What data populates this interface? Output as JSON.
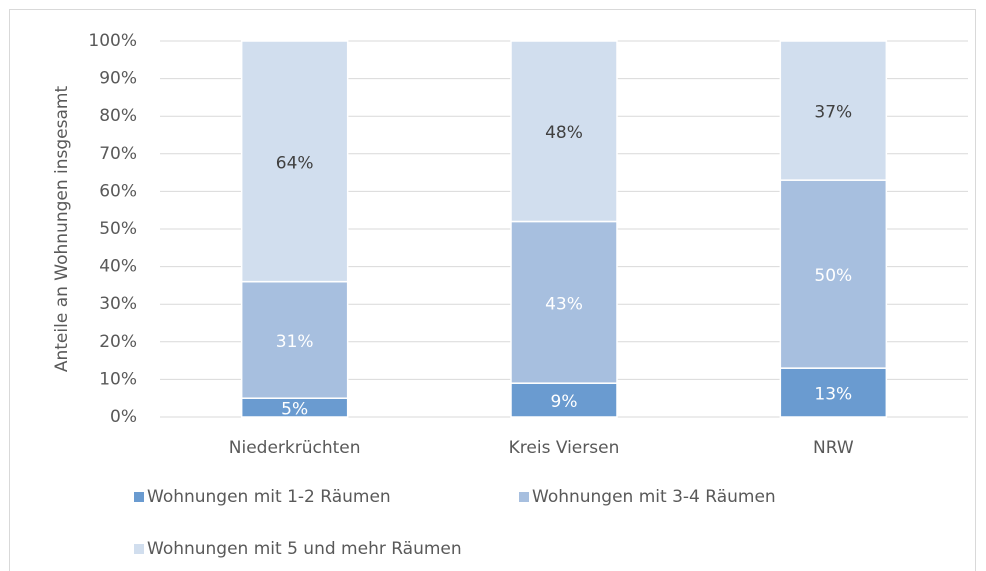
{
  "chart_data": {
    "type": "stacked_bar",
    "y_label": "Anteile an Wohnungen insgesamt",
    "categories": [
      "Niederkrüchten",
      "Kreis Viersen",
      "NRW"
    ],
    "series": [
      {
        "name": "Wohnungen mit 1-2 Räumen",
        "color": "#6a9bd0",
        "values": [
          5,
          9,
          13
        ],
        "value_labels": [
          "5%",
          "9%",
          "13%"
        ],
        "label_color": "#ffffff"
      },
      {
        "name": "Wohnungen mit 3-4 Räumen",
        "color": "#a7bfdf",
        "values": [
          31,
          43,
          50
        ],
        "value_labels": [
          "31%",
          "43%",
          "50%"
        ],
        "label_color": "#ffffff"
      },
      {
        "name": "Wohnungen mit 5 und mehr Räumen",
        "color": "#d1deee",
        "values": [
          64,
          48,
          37
        ],
        "value_labels": [
          "64%",
          "48%",
          "37%"
        ],
        "label_color": "#404040"
      }
    ],
    "ylim": [
      0,
      100
    ],
    "yticks": [
      {
        "value": 0,
        "label": "0%"
      },
      {
        "value": 10,
        "label": "10%"
      },
      {
        "value": 20,
        "label": "20%"
      },
      {
        "value": 30,
        "label": "30%"
      },
      {
        "value": 40,
        "label": "40%"
      },
      {
        "value": 50,
        "label": "50%"
      },
      {
        "value": 60,
        "label": "60%"
      },
      {
        "value": 70,
        "label": "70%"
      },
      {
        "value": 80,
        "label": "80%"
      },
      {
        "value": 90,
        "label": "90%"
      },
      {
        "value": 100,
        "label": "100%"
      }
    ],
    "grid": true
  }
}
